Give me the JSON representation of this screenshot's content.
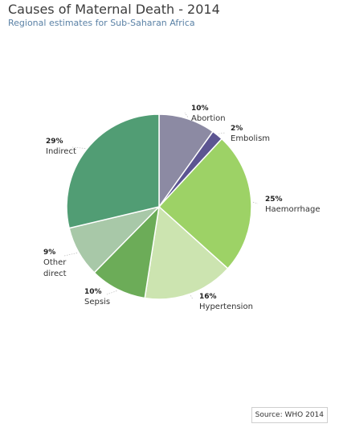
{
  "title": "Causes of Maternal Death - 2014",
  "subtitle": "Regional estimates for Sub-Saharan Africa",
  "source": "Source: WHO 2014",
  "chart_data": {
    "type": "pie",
    "title": "Causes of Maternal Death - 2014",
    "subtitle": "Regional estimates for Sub-Saharan Africa",
    "start_angle_deg": 0,
    "direction": "clockwise",
    "slices": [
      {
        "label": "Abortion",
        "label_lines": [
          "Abortion"
        ],
        "value": 10,
        "pct_text": "10%",
        "color": "#8c8aa3"
      },
      {
        "label": "Embolism",
        "label_lines": [
          "Embolism"
        ],
        "value": 2,
        "pct_text": "2%",
        "color": "#5c5592"
      },
      {
        "label": "Haemorrhage",
        "label_lines": [
          "Haemorrhage"
        ],
        "value": 25,
        "pct_text": "25%",
        "color": "#9dd266"
      },
      {
        "label": "Hypertension",
        "label_lines": [
          "Hypertension"
        ],
        "value": 16,
        "pct_text": "16%",
        "color": "#cce4b0"
      },
      {
        "label": "Sepsis",
        "label_lines": [
          "Sepsis"
        ],
        "value": 10,
        "pct_text": "10%",
        "color": "#6cac58"
      },
      {
        "label": "Other direct",
        "label_lines": [
          "Other",
          "direct"
        ],
        "value": 9,
        "pct_text": "9%",
        "color": "#a8c8a8"
      },
      {
        "label": "Indirect",
        "label_lines": [
          "Indirect"
        ],
        "value": 29,
        "pct_text": "29%",
        "color": "#519d74"
      }
    ]
  }
}
